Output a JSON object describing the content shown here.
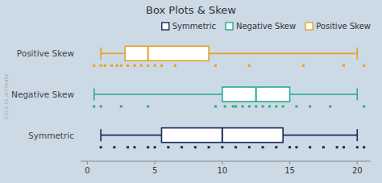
{
  "chart_data": {
    "type": "box",
    "title": "Box Plots & Skew",
    "orientation": "horizontal",
    "categories": [
      "Positive Skew",
      "Negative Skew",
      "Symmetric"
    ],
    "xlim": [
      -0.5,
      21
    ],
    "xticks": [
      0,
      5,
      10,
      15,
      20
    ],
    "grid": false,
    "legend": "upper right",
    "annotations": [
      "Click to animate"
    ],
    "series": [
      {
        "name": "Symmetric",
        "color": "#1a2a5e",
        "whisker_low": 1.0,
        "q1": 5.5,
        "median": 10.0,
        "q3": 14.5,
        "whisker_high": 20.0,
        "scatter": [
          1.0,
          2.0,
          3.0,
          3.5,
          4.5,
          5.0,
          6.0,
          7.0,
          8.0,
          9.0,
          10.0,
          11.0,
          12.0,
          13.0,
          14.0,
          15.0,
          15.5,
          16.5,
          17.5,
          18.5,
          19.0,
          20.0,
          20.5
        ]
      },
      {
        "name": "Negative Skew",
        "color": "#2aaa8a",
        "whisker_low": 0.5,
        "q1": 10.0,
        "median": 12.5,
        "q3": 15.0,
        "whisker_high": 20.0,
        "scatter": [
          0.5,
          1.0,
          2.5,
          4.5,
          9.5,
          10.2,
          10.8,
          11.0,
          11.5,
          12.0,
          12.5,
          13.0,
          13.5,
          14.0,
          14.5,
          15.5,
          16.5,
          18.0,
          20.5
        ]
      },
      {
        "name": "Positive Skew",
        "color": "#e8a020",
        "whisker_low": 1.0,
        "q1": 2.8,
        "median": 4.5,
        "q3": 9.0,
        "whisker_high": 20.0,
        "scatter": [
          0.5,
          1.0,
          1.3,
          1.8,
          2.2,
          2.5,
          3.0,
          3.5,
          4.0,
          4.5,
          5.0,
          5.5,
          6.5,
          9.5,
          12.0,
          16.0,
          19.0,
          20.5
        ]
      }
    ]
  }
}
